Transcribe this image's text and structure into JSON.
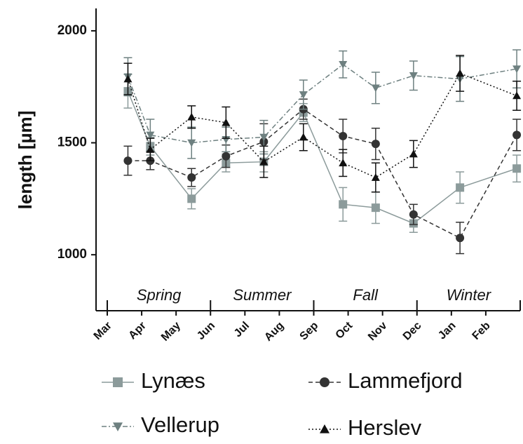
{
  "chart_data": {
    "type": "line",
    "y_label": "length [µm]",
    "x": [
      0.6,
      1.25,
      2.45,
      3.45,
      4.55,
      5.7,
      6.85,
      7.8,
      8.9,
      10.25,
      11.9
    ],
    "xlim": [
      0,
      12
    ],
    "xticks": [
      {
        "value": 0,
        "label": "Mar"
      },
      {
        "value": 1,
        "label": "Apr"
      },
      {
        "value": 2,
        "label": "May"
      },
      {
        "value": 3,
        "label": "Jun"
      },
      {
        "value": 4,
        "label": "Jul"
      },
      {
        "value": 5,
        "label": "Aug"
      },
      {
        "value": 6,
        "label": "Sep"
      },
      {
        "value": 7,
        "label": "Oct"
      },
      {
        "value": 8,
        "label": "Nov"
      },
      {
        "value": 9,
        "label": "Dec"
      },
      {
        "value": 10,
        "label": "Jan"
      },
      {
        "value": 11,
        "label": "Feb"
      }
    ],
    "ylim": [
      750,
      2100
    ],
    "yticks": [
      1000,
      1500,
      2000
    ],
    "seasons": [
      "Spring",
      "Summer",
      "Fall",
      "Winter"
    ],
    "series": [
      {
        "name": "Lynæs",
        "color": "#8c9b9b",
        "marker": "square",
        "dash": "solid",
        "values": [
          1730,
          1485,
          1250,
          1410,
          1415,
          1635,
          1225,
          1210,
          1140,
          1300,
          1385
        ],
        "errors": [
          75,
          40,
          45,
          40,
          45,
          40,
          75,
          70,
          40,
          70,
          60
        ]
      },
      {
        "name": "Lammefjord",
        "color": "#333333",
        "marker": "circle",
        "dash": "dashed",
        "values": [
          1420,
          1420,
          1345,
          1440,
          1505,
          1650,
          1530,
          1495,
          1180,
          1075,
          1535
        ],
        "errors": [
          65,
          40,
          40,
          50,
          80,
          45,
          75,
          70,
          45,
          70,
          70
        ]
      },
      {
        "name": "Vellerup",
        "color": "#6e8080",
        "marker": "triangle-down",
        "dash": "dashdot",
        "values": [
          1795,
          1535,
          1500,
          1515,
          1525,
          1715,
          1850,
          1745,
          1800,
          1785,
          1830
        ],
        "errors": [
          85,
          70,
          70,
          55,
          75,
          65,
          60,
          70,
          65,
          100,
          85
        ]
      },
      {
        "name": "Herslev",
        "color": "#111111",
        "marker": "triangle-up",
        "dash": "dotted",
        "values": [
          1785,
          1470,
          1615,
          1590,
          1415,
          1525,
          1410,
          1345,
          1450,
          1810,
          1710
        ],
        "errors": [
          70,
          50,
          50,
          70,
          70,
          60,
          60,
          65,
          60,
          80,
          65
        ]
      }
    ]
  }
}
